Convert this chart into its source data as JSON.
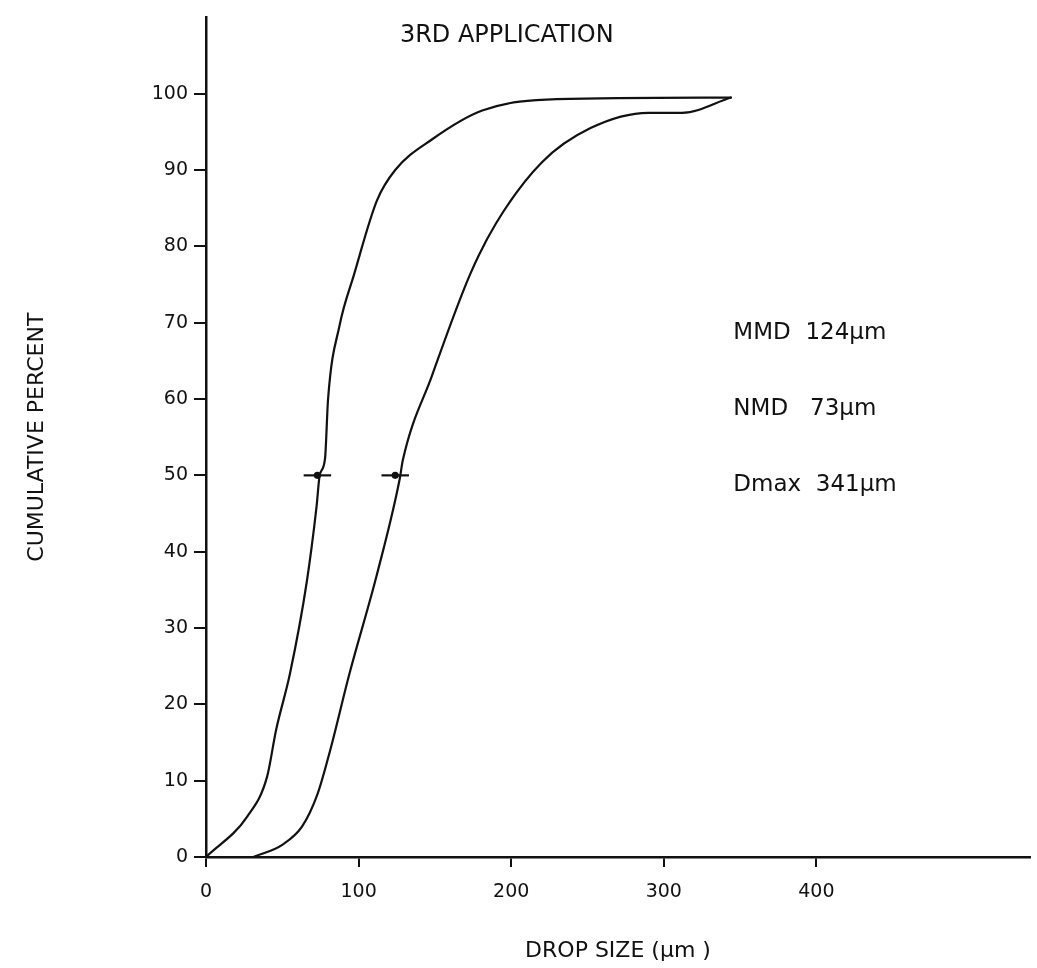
{
  "chart_data": {
    "type": "line",
    "title": "3RD APPLICATION",
    "xlabel": "DROP SIZE (µm )",
    "ylabel": "CUMULATIVE PERCENT",
    "xlim": [
      0,
      540
    ],
    "ylim": [
      0,
      110
    ],
    "xticks": [
      0,
      100,
      200,
      300,
      400
    ],
    "yticks": [
      0,
      10,
      20,
      30,
      40,
      50,
      60,
      70,
      80,
      90,
      100
    ],
    "grid": false,
    "legend": false,
    "marker": "none",
    "line_style": "solid",
    "series": [
      {
        "color": "#111111",
        "x": [
          0,
          27,
          40,
          46,
          55,
          66,
          72.5,
          74.5,
          78,
          80,
          87.6,
          97,
          112,
          124,
          148,
          181,
          230,
          344
        ],
        "values": [
          0,
          5.3,
          10.5,
          16.7,
          24,
          36,
          46,
          50,
          52.2,
          60,
          69.7,
          76.3,
          86,
          90,
          94,
          97.8,
          99.3,
          99.5
        ]
      },
      {
        "color": "#111111",
        "x": [
          31,
          50,
          63,
          73,
          81,
          94,
          112,
          127,
          129,
          148,
          173,
          190,
          220,
          252,
          290,
          312,
          344
        ],
        "values": [
          0,
          1.6,
          4,
          8.2,
          13.7,
          24,
          37,
          49.6,
          52,
          63,
          76.3,
          83,
          91,
          95.5,
          97.5,
          97.5,
          99.5
        ]
      },
      {
        "type": "scatter",
        "marker": "circle",
        "color": "#111111",
        "x": [
          73,
          124
        ],
        "values": [
          50,
          50
        ],
        "xerrors": [
          9,
          9
        ]
      }
    ],
    "annotations": [
      "MMD  124µm",
      "NMD   73µm",
      "Dmax  341µm"
    ]
  }
}
